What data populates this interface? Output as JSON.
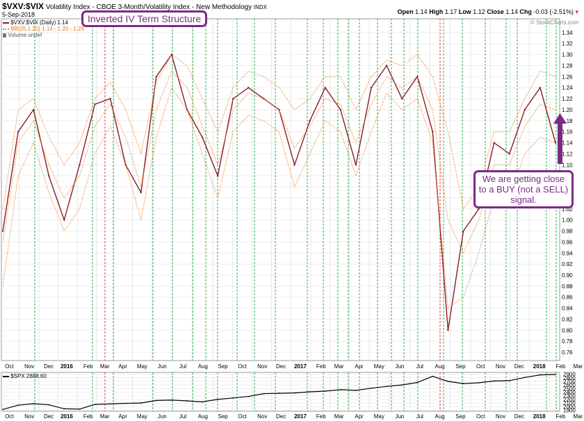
{
  "header": {
    "ticker": "$VXV:$VIX",
    "description": "Volatility Index - CBOE 3-Month/Volatility Index - New Methodology",
    "exchange": "INDX",
    "date": "5-Sep-2018",
    "open_label": "Open",
    "open": "1.14",
    "high_label": "High",
    "high": "1.17",
    "low_label": "Low",
    "low": "1.12",
    "close_label": "Close",
    "close": "1.14",
    "chg_label": "Chg",
    "chg": "-0.03 (-2.51%)",
    "watermark": "© StockCharts.com"
  },
  "legend": {
    "ratio": "$VXV:$VIX (Daily) 1.14",
    "bb": "BB(25,1.25) 1.14 - 1.20 - 1.26",
    "volume": "Volume undef",
    "spx": "$SPX 2888.60"
  },
  "annotations": {
    "title": "Inverted IV Term Structure",
    "buy_signal": "We are getting close to a BUY (not a SELL) signal."
  },
  "colors": {
    "ratio_line": "#8b1a2b",
    "bb_band": "#f08a2c",
    "green_line": "#22b14c",
    "red_line": "#e53935",
    "annotation": "#7a2a85",
    "spx_line": "#000000"
  },
  "chart_data": [
    {
      "type": "line",
      "title": "$VXV:$VIX",
      "x_axis_labels": [
        "Oct",
        "Nov",
        "Dec",
        "2016",
        "Feb",
        "Mar",
        "Apr",
        "May",
        "Jun",
        "Jul",
        "Aug",
        "Sep",
        "Oct",
        "Nov",
        "Dec",
        "2017",
        "Feb",
        "Mar",
        "Apr",
        "May",
        "Jun",
        "Jul",
        "Aug",
        "Sep",
        "Oct",
        "Nov",
        "Dec",
        "2018",
        "Feb",
        "Mar",
        "Apr",
        "May",
        "Jun",
        "Jul",
        "Aug",
        "Sep"
      ],
      "y_ticks": [
        0.76,
        0.78,
        0.8,
        0.82,
        0.84,
        0.86,
        0.88,
        0.9,
        0.92,
        0.94,
        0.96,
        0.98,
        1.0,
        1.02,
        1.04,
        1.06,
        1.08,
        1.1,
        1.12,
        1.14,
        1.16,
        1.18,
        1.2,
        1.22,
        1.24,
        1.26,
        1.28,
        1.3,
        1.32,
        1.34
      ],
      "ylim": [
        0.745,
        1.365
      ],
      "x": [
        "2015-09",
        "2015-10",
        "2015-11",
        "2015-12",
        "2016-01",
        "2016-02",
        "2016-03",
        "2016-04",
        "2016-05",
        "2016-06",
        "2016-07",
        "2016-08",
        "2016-09",
        "2016-10",
        "2016-11",
        "2016-12",
        "2017-01",
        "2017-02",
        "2017-03",
        "2017-04",
        "2017-05",
        "2017-06",
        "2017-07",
        "2017-08",
        "2017-09",
        "2017-10",
        "2017-11",
        "2017-12",
        "2018-01",
        "2018-02",
        "2018-03",
        "2018-04",
        "2018-05",
        "2018-06",
        "2018-07",
        "2018-08",
        "2018-09"
      ],
      "series": [
        {
          "name": "$VXV:$VIX",
          "values": [
            0.98,
            1.16,
            1.2,
            1.08,
            1.0,
            1.1,
            1.21,
            1.22,
            1.1,
            1.05,
            1.26,
            1.3,
            1.2,
            1.15,
            1.08,
            1.22,
            1.24,
            1.22,
            1.2,
            1.1,
            1.18,
            1.24,
            1.2,
            1.1,
            1.24,
            1.28,
            1.22,
            1.26,
            1.16,
            0.8,
            0.98,
            1.02,
            1.14,
            1.12,
            1.2,
            1.24,
            1.14
          ]
        },
        {
          "name": "BB(25,1.25) upper",
          "values": [
            1.02,
            1.2,
            1.22,
            1.15,
            1.1,
            1.14,
            1.22,
            1.25,
            1.2,
            1.12,
            1.25,
            1.3,
            1.28,
            1.22,
            1.16,
            1.24,
            1.27,
            1.26,
            1.24,
            1.2,
            1.22,
            1.26,
            1.26,
            1.2,
            1.26,
            1.29,
            1.28,
            1.3,
            1.26,
            1.16,
            1.02,
            1.06,
            1.16,
            1.16,
            1.22,
            1.27,
            1.26
          ]
        },
        {
          "name": "BB(25,1.25) middle",
          "values": [
            0.96,
            1.14,
            1.18,
            1.1,
            1.04,
            1.08,
            1.17,
            1.21,
            1.15,
            1.06,
            1.2,
            1.27,
            1.24,
            1.17,
            1.1,
            1.2,
            1.23,
            1.22,
            1.2,
            1.13,
            1.17,
            1.22,
            1.21,
            1.14,
            1.21,
            1.26,
            1.24,
            1.26,
            1.2,
            1.0,
            0.94,
            1.0,
            1.1,
            1.1,
            1.17,
            1.21,
            1.2
          ]
        },
        {
          "name": "BB(25,1.25) lower",
          "values": [
            0.88,
            1.08,
            1.14,
            1.05,
            0.98,
            1.02,
            1.12,
            1.17,
            1.1,
            1.0,
            1.15,
            1.24,
            1.2,
            1.12,
            1.04,
            1.16,
            1.19,
            1.18,
            1.16,
            1.06,
            1.12,
            1.18,
            1.16,
            1.08,
            1.16,
            1.23,
            1.2,
            1.22,
            1.14,
            0.84,
            0.86,
            0.94,
            1.04,
            1.04,
            1.12,
            1.15,
            1.14
          ]
        }
      ]
    },
    {
      "type": "line",
      "title": "$SPX",
      "x_axis_labels": [
        "Oct",
        "Nov",
        "Dec",
        "2016",
        "Feb",
        "Mar",
        "Apr",
        "May",
        "Jun",
        "Jul",
        "Aug",
        "Sep",
        "Oct",
        "Nov",
        "Dec",
        "2017",
        "Feb",
        "Mar",
        "Apr",
        "May",
        "Jun",
        "Jul",
        "Aug",
        "Sep",
        "Oct",
        "Nov",
        "Dec",
        "2018",
        "Feb",
        "Mar",
        "Apr",
        "May",
        "Jun",
        "Jul",
        "Aug",
        "Sep"
      ],
      "y_ticks": [
        1900,
        2000,
        2100,
        2200,
        2300,
        2400,
        2500,
        2600,
        2700,
        2800,
        2900
      ],
      "ylim": [
        1870,
        2950
      ],
      "x": [
        "2015-09",
        "2015-10",
        "2015-11",
        "2015-12",
        "2016-01",
        "2016-02",
        "2016-03",
        "2016-04",
        "2016-05",
        "2016-06",
        "2016-07",
        "2016-08",
        "2016-09",
        "2016-10",
        "2016-11",
        "2016-12",
        "2017-01",
        "2017-02",
        "2017-03",
        "2017-04",
        "2017-05",
        "2017-06",
        "2017-07",
        "2017-08",
        "2017-09",
        "2017-10",
        "2017-11",
        "2017-12",
        "2018-01",
        "2018-02",
        "2018-03",
        "2018-04",
        "2018-05",
        "2018-06",
        "2018-07",
        "2018-08",
        "2018-09"
      ],
      "series": [
        {
          "name": "$SPX",
          "values": [
            1920,
            2040,
            2080,
            2050,
            1940,
            1930,
            2060,
            2075,
            2090,
            2100,
            2170,
            2180,
            2160,
            2130,
            2200,
            2240,
            2280,
            2360,
            2370,
            2380,
            2410,
            2430,
            2470,
            2450,
            2510,
            2560,
            2600,
            2670,
            2840,
            2700,
            2640,
            2660,
            2710,
            2720,
            2810,
            2880,
            2890
          ]
        }
      ]
    }
  ]
}
